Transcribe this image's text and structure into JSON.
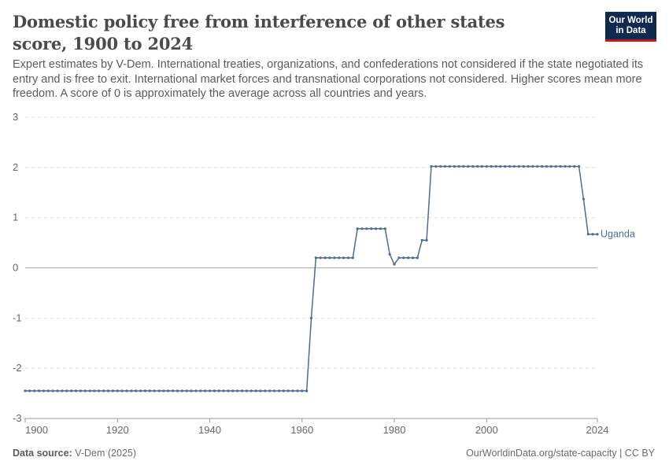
{
  "header": {
    "title": "Domestic policy free from interference of other states score, 1900 to 2024",
    "subtitle": "Expert estimates by V-Dem. International treaties, organizations, and confederations not considered if the state negotiated its entry and is free to exit. International market forces and transnational corporations not considered. Higher scores mean more freedom. A score of 0 is approximately the average across all countries and years.",
    "logo_line1": "Our World",
    "logo_line2": "in Data"
  },
  "footer": {
    "source_label": "Data source:",
    "source_value": "V-Dem (2025)",
    "url": "OurWorldinData.org/state-capacity | CC BY"
  },
  "colors": {
    "series": "#4c6a9c",
    "grid": "#dddddd",
    "zero_line": "#a8a8a8",
    "logo_bg": "#0f2a4e",
    "logo_accent": "#c4161c"
  },
  "chart_data": {
    "type": "line",
    "x_ticks": [
      1900,
      1920,
      1940,
      1960,
      1980,
      2000,
      2024
    ],
    "y_ticks": [
      -3,
      -2,
      -1,
      0,
      1,
      2,
      3
    ],
    "xlim": [
      1900,
      2024
    ],
    "ylim": [
      -3,
      3
    ],
    "grid": "horizontal dashed",
    "legend": "inline label at line end",
    "series": [
      {
        "name": "Uganda",
        "x": [
          1900,
          1901,
          1902,
          1903,
          1904,
          1905,
          1906,
          1907,
          1908,
          1909,
          1910,
          1911,
          1912,
          1913,
          1914,
          1915,
          1916,
          1917,
          1918,
          1919,
          1920,
          1921,
          1922,
          1923,
          1924,
          1925,
          1926,
          1927,
          1928,
          1929,
          1930,
          1931,
          1932,
          1933,
          1934,
          1935,
          1936,
          1937,
          1938,
          1939,
          1940,
          1941,
          1942,
          1943,
          1944,
          1945,
          1946,
          1947,
          1948,
          1949,
          1950,
          1951,
          1952,
          1953,
          1954,
          1955,
          1956,
          1957,
          1958,
          1959,
          1960,
          1961,
          1962,
          1963,
          1964,
          1965,
          1966,
          1967,
          1968,
          1969,
          1970,
          1971,
          1972,
          1973,
          1974,
          1975,
          1976,
          1977,
          1978,
          1979,
          1980,
          1981,
          1982,
          1983,
          1984,
          1985,
          1986,
          1987,
          1988,
          1989,
          1990,
          1991,
          1992,
          1993,
          1994,
          1995,
          1996,
          1997,
          1998,
          1999,
          2000,
          2001,
          2002,
          2003,
          2004,
          2005,
          2006,
          2007,
          2008,
          2009,
          2010,
          2011,
          2012,
          2013,
          2014,
          2015,
          2016,
          2017,
          2018,
          2019,
          2020,
          2021,
          2022,
          2023,
          2024
        ],
        "y": [
          -2.45,
          -2.45,
          -2.45,
          -2.45,
          -2.45,
          -2.45,
          -2.45,
          -2.45,
          -2.45,
          -2.45,
          -2.45,
          -2.45,
          -2.45,
          -2.45,
          -2.45,
          -2.45,
          -2.45,
          -2.45,
          -2.45,
          -2.45,
          -2.45,
          -2.45,
          -2.45,
          -2.45,
          -2.45,
          -2.45,
          -2.45,
          -2.45,
          -2.45,
          -2.45,
          -2.45,
          -2.45,
          -2.45,
          -2.45,
          -2.45,
          -2.45,
          -2.45,
          -2.45,
          -2.45,
          -2.45,
          -2.45,
          -2.45,
          -2.45,
          -2.45,
          -2.45,
          -2.45,
          -2.45,
          -2.45,
          -2.45,
          -2.45,
          -2.45,
          -2.45,
          -2.45,
          -2.45,
          -2.45,
          -2.45,
          -2.45,
          -2.45,
          -2.45,
          -2.45,
          -2.45,
          -2.45,
          -1.0,
          0.2,
          0.2,
          0.2,
          0.2,
          0.2,
          0.2,
          0.2,
          0.2,
          0.2,
          0.78,
          0.78,
          0.78,
          0.78,
          0.78,
          0.78,
          0.78,
          0.27,
          0.07,
          0.2,
          0.2,
          0.2,
          0.2,
          0.2,
          0.55,
          0.55,
          2.02,
          2.02,
          2.02,
          2.02,
          2.02,
          2.02,
          2.02,
          2.02,
          2.02,
          2.02,
          2.02,
          2.02,
          2.02,
          2.02,
          2.02,
          2.02,
          2.02,
          2.02,
          2.02,
          2.02,
          2.02,
          2.02,
          2.02,
          2.02,
          2.02,
          2.02,
          2.02,
          2.02,
          2.02,
          2.02,
          2.02,
          2.02,
          2.02,
          1.37,
          0.67,
          0.67,
          0.67
        ]
      }
    ]
  }
}
